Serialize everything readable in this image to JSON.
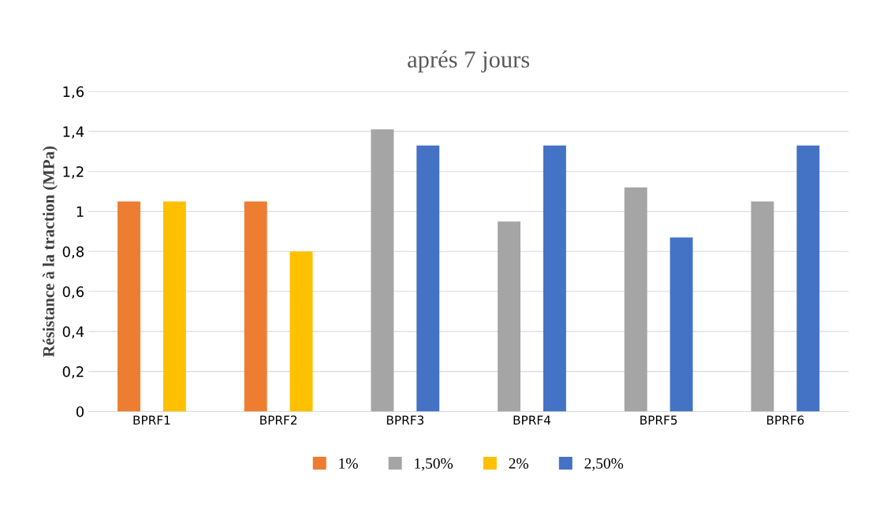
{
  "chart_data": {
    "type": "bar",
    "title": "aprés 7 jours",
    "ylabel": "Résistance à la traction (MPa)",
    "categories": [
      "BPRF1",
      "BPRF2",
      "BPRF3",
      "BPRF4",
      "BPRF5",
      "BPRF6"
    ],
    "series": [
      {
        "name": "1%",
        "color": "#ed7d31",
        "values": [
          1.05,
          1.05,
          null,
          null,
          null,
          null
        ]
      },
      {
        "name": "1,50%",
        "color": "#a5a5a5",
        "values": [
          null,
          null,
          1.41,
          0.95,
          1.12,
          1.05
        ]
      },
      {
        "name": "2%",
        "color": "#ffc000",
        "values": [
          1.05,
          0.8,
          null,
          null,
          null,
          null
        ]
      },
      {
        "name": "2,50%",
        "color": "#4472c4",
        "values": [
          null,
          null,
          1.33,
          1.33,
          0.87,
          1.33
        ]
      }
    ],
    "ylim": [
      0,
      1.6
    ],
    "yticks": [
      0,
      {
        "value": 0.2,
        "label": "0,2"
      },
      {
        "value": 0.4,
        "label": "0,4"
      },
      {
        "value": 0.6,
        "label": "0,6"
      },
      {
        "value": 0.8,
        "label": "0,8"
      },
      1,
      {
        "value": 1.2,
        "label": "1,2"
      },
      {
        "value": 1.4,
        "label": "1,4"
      },
      {
        "value": 1.6,
        "label": "1,6"
      }
    ],
    "grid": "y",
    "legend": "bottom"
  }
}
